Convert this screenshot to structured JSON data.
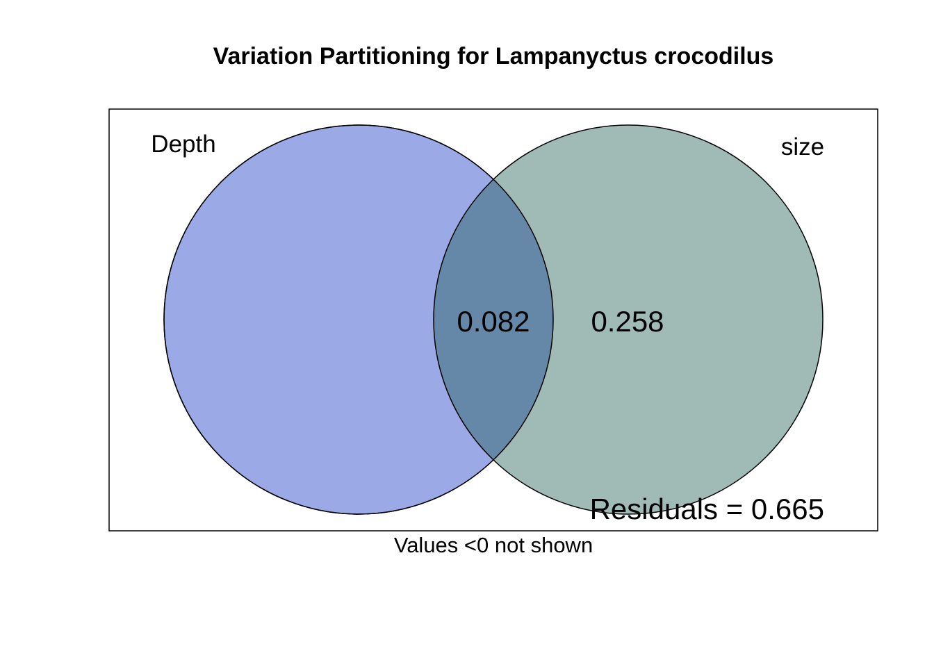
{
  "title": "Variation Partitioning for Lampanyctus crocodilus",
  "sets": [
    {
      "name": "Depth",
      "color": "#4a63d4"
    },
    {
      "name": "size",
      "color": "#4d7d72"
    }
  ],
  "values": {
    "depth_only": null,
    "shared": "0.082",
    "size_only": "0.258"
  },
  "residuals": "Residuals = 0.665",
  "note": "Values <0 not shown",
  "colors": {
    "depth_fill": "#9ba9e6",
    "size_fill": "#a0bab6",
    "overlap_fill": "#6588a8",
    "stroke": "#000000"
  }
}
